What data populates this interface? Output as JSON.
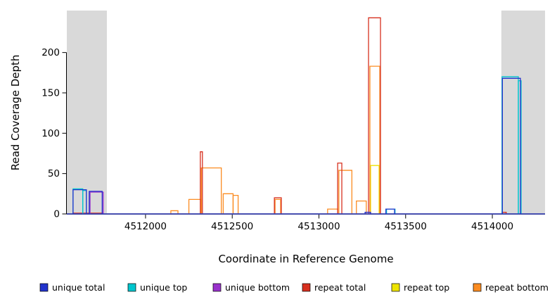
{
  "figure": {
    "background": "#FFFFFF"
  },
  "chart_data": {
    "type": "line",
    "subtype": "step-coverage-outline",
    "title": "",
    "xlabel": "Coordinate in Reference Genome",
    "ylabel": "Read Coverage Depth",
    "xlim": [
      4511546,
      4514304
    ],
    "ylim": [
      0,
      252
    ],
    "x_ticks": [
      4512000,
      4512500,
      4513000,
      4513500,
      4514000
    ],
    "y_ticks": [
      0,
      50,
      100,
      150,
      200
    ],
    "grid": false,
    "legend_position": "bottom",
    "shade_color": "#D9D9D9",
    "shaded_regions": [
      {
        "x0": 4511546,
        "x1": 4511777
      },
      {
        "x0": 4514052,
        "x1": 4514304
      }
    ],
    "series": [
      {
        "name": "repeat top",
        "color": "#EDE400",
        "segments": [
          [
            4513298,
            4513347,
            60
          ]
        ]
      },
      {
        "name": "repeat bottom",
        "color": "#FB8C22",
        "segments": [
          [
            4512146,
            4512187,
            4
          ],
          [
            4512250,
            4512322,
            18
          ],
          [
            4512322,
            4512437,
            57
          ],
          [
            4512448,
            4512505,
            25
          ],
          [
            4512505,
            4512534,
            23
          ],
          [
            4512747,
            4512779,
            18
          ],
          [
            4513050,
            4513108,
            6
          ],
          [
            4513115,
            4513190,
            54
          ],
          [
            4513216,
            4513273,
            16
          ],
          [
            4513294,
            4513351,
            183
          ]
        ]
      },
      {
        "name": "repeat total",
        "color": "#D7301F",
        "segments": [
          [
            4511582,
            4511756,
            1
          ],
          [
            4512316,
            4512328,
            77
          ],
          [
            4512743,
            4512783,
            20
          ],
          [
            4513108,
            4513132,
            63
          ],
          [
            4513286,
            4513355,
            243
          ],
          [
            4514056,
            4514080,
            2
          ]
        ]
      },
      {
        "name": "unique bottom",
        "color": "#9932CC",
        "segments": [
          [
            4511680,
            4511756,
            27
          ]
        ]
      },
      {
        "name": "unique top",
        "color": "#00C5CD",
        "segments": [
          [
            4511582,
            4511638,
            31
          ],
          [
            4511638,
            4511659,
            29
          ],
          [
            4513390,
            4513439,
            6
          ],
          [
            4514056,
            4514150,
            170
          ],
          [
            4514150,
            4514166,
            165
          ]
        ]
      },
      {
        "name": "unique total",
        "color": "#2233CC",
        "segments": [
          [
            4511582,
            4511659,
            30
          ],
          [
            4511675,
            4511750,
            28
          ],
          [
            4513266,
            4513298,
            2
          ],
          [
            4513386,
            4513436,
            6
          ],
          [
            4514058,
            4514162,
            168
          ]
        ]
      }
    ],
    "legend": [
      {
        "label": "unique total",
        "color": "#2233CC"
      },
      {
        "label": "unique top",
        "color": "#00C5CD"
      },
      {
        "label": "unique bottom",
        "color": "#9932CC"
      },
      {
        "label": "repeat total",
        "color": "#D7301F"
      },
      {
        "label": "repeat top",
        "color": "#EDE400"
      },
      {
        "label": "repeat bottom",
        "color": "#FB8C22"
      }
    ]
  }
}
